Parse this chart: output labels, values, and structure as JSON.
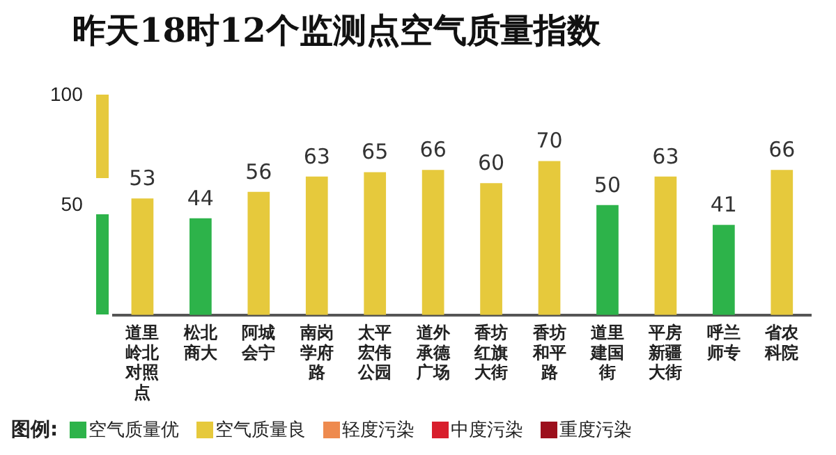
{
  "chart_data": {
    "type": "bar",
    "title": "昨天18时12个监测点空气质量指数",
    "legend_title": "图例:",
    "categories": [
      "道里岭北对照点",
      "松北商大",
      "阿城会宁",
      "南岗学府路",
      "太平宏伟公园",
      "道外承德广场",
      "香坊红旗大街",
      "香坊和平路",
      "道里建国街",
      "平房新疆大街",
      "呼兰师专",
      "省农科院"
    ],
    "series": [
      {
        "name": "空气质量优",
        "color": "#2db34a",
        "values": [
          null,
          44,
          null,
          null,
          null,
          null,
          null,
          null,
          50,
          null,
          41,
          null
        ]
      },
      {
        "name": "空气质量良",
        "color": "#e6c93c",
        "values": [
          53,
          null,
          56,
          63,
          65,
          66,
          60,
          70,
          null,
          63,
          null,
          66
        ]
      },
      {
        "name": "轻度污染",
        "color": "#ee8a4e",
        "values": [
          null,
          null,
          null,
          null,
          null,
          null,
          null,
          null,
          null,
          null,
          null,
          null
        ]
      },
      {
        "name": "中度污染",
        "color": "#d81e2c",
        "values": [
          null,
          null,
          null,
          null,
          null,
          null,
          null,
          null,
          null,
          null,
          null,
          null
        ]
      },
      {
        "name": "重度污染",
        "color": "#9c0f1c",
        "values": [
          null,
          null,
          null,
          null,
          null,
          null,
          null,
          null,
          null,
          null,
          null,
          null
        ]
      }
    ],
    "stacked": true,
    "ylim": [
      0,
      100
    ],
    "yticks": [
      50,
      100
    ],
    "grid": false,
    "legend": "bottom",
    "data_labels": true
  }
}
